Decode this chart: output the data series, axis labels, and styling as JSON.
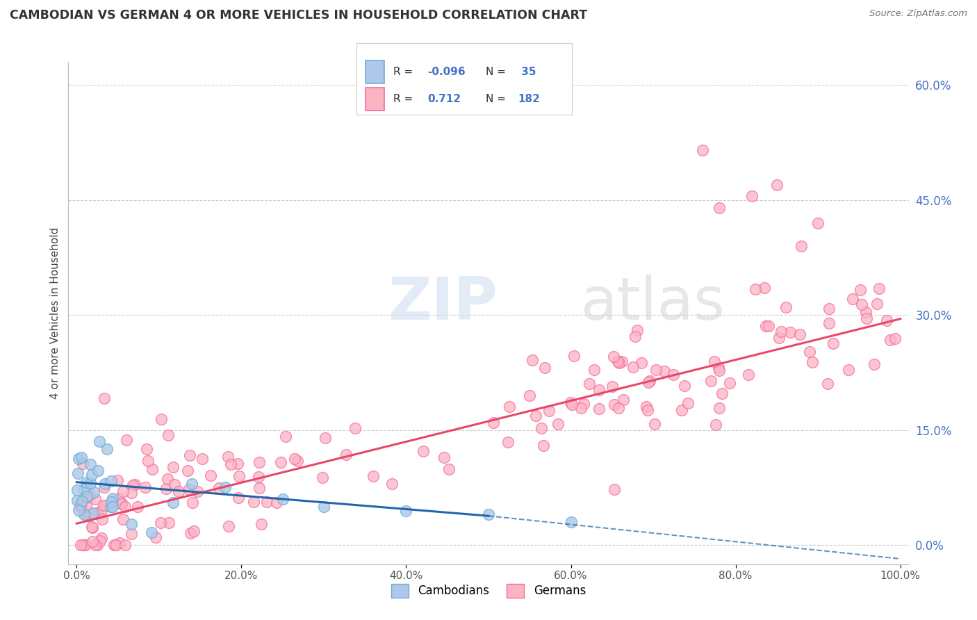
{
  "title": "CAMBODIAN VS GERMAN 4 OR MORE VEHICLES IN HOUSEHOLD CORRELATION CHART",
  "source": "Source: ZipAtlas.com",
  "ylabel": "4 or more Vehicles in Household",
  "legend_labels": [
    "Cambodians",
    "Germans"
  ],
  "R_cambodian": -0.096,
  "N_cambodian": 35,
  "R_german": 0.712,
  "N_german": 182,
  "xlim": [
    -1.0,
    101.0
  ],
  "ylim": [
    -0.025,
    0.63
  ],
  "yticks": [
    0.0,
    0.15,
    0.3,
    0.45,
    0.6
  ],
  "xticks": [
    0.0,
    20.0,
    40.0,
    60.0,
    80.0,
    100.0
  ],
  "color_cambodian_face": "#adc8e8",
  "color_cambodian_edge": "#6baed6",
  "color_german_face": "#fbb4c2",
  "color_german_edge": "#f768a1",
  "line_color_cambodian": "#2166ac",
  "line_color_german": "#e8476a",
  "background_color": "#ffffff",
  "grid_color": "#cccccc",
  "watermark_text": "ZIP",
  "watermark_text2": "atlas",
  "tick_label_color_y": "#4472c4",
  "tick_label_color_x": "#555555",
  "cam_trend_start_y": 0.082,
  "cam_trend_end_y": 0.038,
  "cam_trend_dash_end_y": -0.018,
  "ger_trend_start_y": 0.028,
  "ger_trend_end_y": 0.295
}
